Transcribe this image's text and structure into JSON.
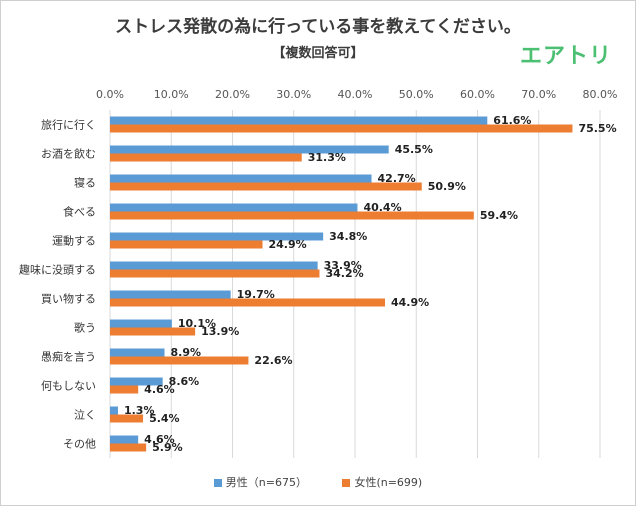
{
  "header": {
    "title": "ストレス発散の為に行っている事を教えてください。",
    "subtitle": "【複数回答可】",
    "logo": "エアトリ"
  },
  "colors": {
    "male": "#5b9bd5",
    "female": "#ed7d31",
    "grid": "#d9d9d9"
  },
  "legend": {
    "male_label": "男性（n=675）",
    "female_label": "女性(n=699)"
  },
  "chart_data": {
    "type": "bar",
    "orientation": "horizontal",
    "title": "ストレス発散の為に行っている事を教えてください。",
    "subtitle": "【複数回答可】",
    "categories": [
      "旅行に行く",
      "お酒を飲む",
      "寝る",
      "食べる",
      "運動する",
      "趣味に没頭する",
      "買い物する",
      "歌う",
      "愚痴を言う",
      "何もしない",
      "泣く",
      "その他"
    ],
    "series": [
      {
        "name": "男性（n=675）",
        "values": [
          61.6,
          45.5,
          42.7,
          40.4,
          34.8,
          33.9,
          19.7,
          10.1,
          8.9,
          8.6,
          1.3,
          4.6
        ]
      },
      {
        "name": "女性(n=699)",
        "values": [
          75.5,
          31.3,
          50.9,
          59.4,
          24.9,
          34.2,
          44.9,
          13.9,
          22.6,
          4.6,
          5.4,
          5.9
        ]
      }
    ],
    "xlim": [
      0,
      80
    ],
    "xticks": [
      "0.0%",
      "10.0%",
      "20.0%",
      "30.0%",
      "40.0%",
      "50.0%",
      "60.0%",
      "70.0%",
      "80.0%"
    ],
    "value_labels": [
      [
        "61.6%",
        "45.5%",
        "42.7%",
        "40.4%",
        "34.8%",
        "33.9%",
        "19.7%",
        "10.1%",
        "8.9%",
        "8.6%",
        "1.3%",
        "4.6%"
      ],
      [
        "75.5%",
        "31.3%",
        "50.9%",
        "59.4%",
        "24.9%",
        "34.2%",
        "44.9%",
        "13.9%",
        "22.6%",
        "4.6%",
        "5.4%",
        "5.9%"
      ]
    ],
    "grid": true,
    "legend_position": "bottom"
  }
}
